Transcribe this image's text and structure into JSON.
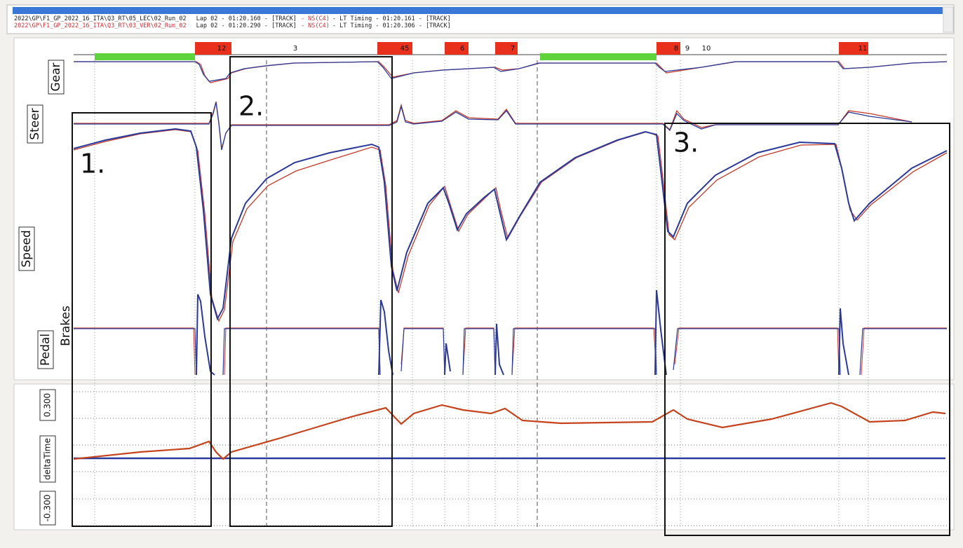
{
  "header": {
    "rows": [
      {
        "file": "2022\\GP\\F1_GP_2022_16_ITA\\Q3_RT\\05_LEC\\02_Run_02",
        "lap": "Lap 02 - 01:20.160 - [TRACK]",
        "tyre": "- NS(C4)",
        "timing": "- LT Timing - 01:20.161 - [TRACK]"
      },
      {
        "file": "2022\\GP\\F1_GP_2022_16_ITA\\Q3_RT\\03_VER\\02_Run_02",
        "lap": "Lap 02 - 01:20.290 - [TRACK]",
        "tyre": "- NS(C4)",
        "timing": "- LT Timing - 01:20.306 - [TRACK]"
      }
    ]
  },
  "corners": [
    "12",
    "3",
    "45",
    "6",
    "7",
    "8",
    "9",
    "10",
    "11"
  ],
  "channels": {
    "gear": "Gear",
    "steer": "Steer",
    "speed": "Speed",
    "brakes": "Brakes",
    "pedal": "Pedal"
  },
  "delta": {
    "label": "deltaTime",
    "top_tick": "0.300",
    "bottom_tick": "-0.300"
  },
  "annotations": [
    "1.",
    "2.",
    "3."
  ]
}
